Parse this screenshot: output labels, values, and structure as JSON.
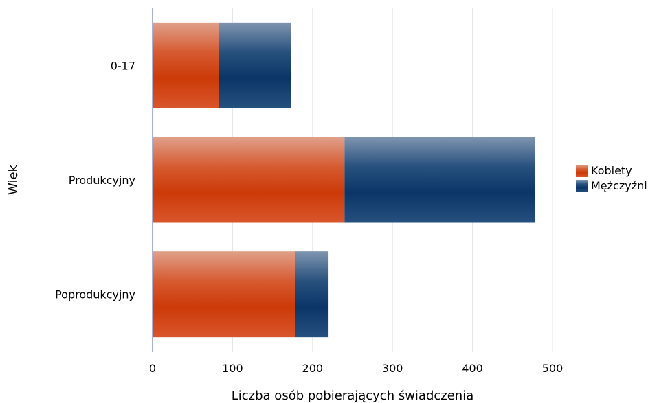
{
  "chart_data": {
    "type": "bar",
    "orientation": "horizontal",
    "stacked": true,
    "title": "",
    "xlabel": "Liczba osób pobierających świadczenia",
    "ylabel": "Wiek",
    "categories": [
      "0-17",
      "Produkcyjny",
      "Poprodukcyjny"
    ],
    "xlim": [
      0,
      500
    ],
    "xticks": [
      0,
      100,
      200,
      300,
      400,
      500
    ],
    "grid": true,
    "legend_position": "right",
    "series": [
      {
        "name": "Kobiety",
        "color": "#d13a0a",
        "values": [
          83,
          240,
          178
        ]
      },
      {
        "name": "Mężczyźni",
        "color": "#0f3b6e",
        "values": [
          90,
          238,
          42
        ]
      }
    ]
  }
}
